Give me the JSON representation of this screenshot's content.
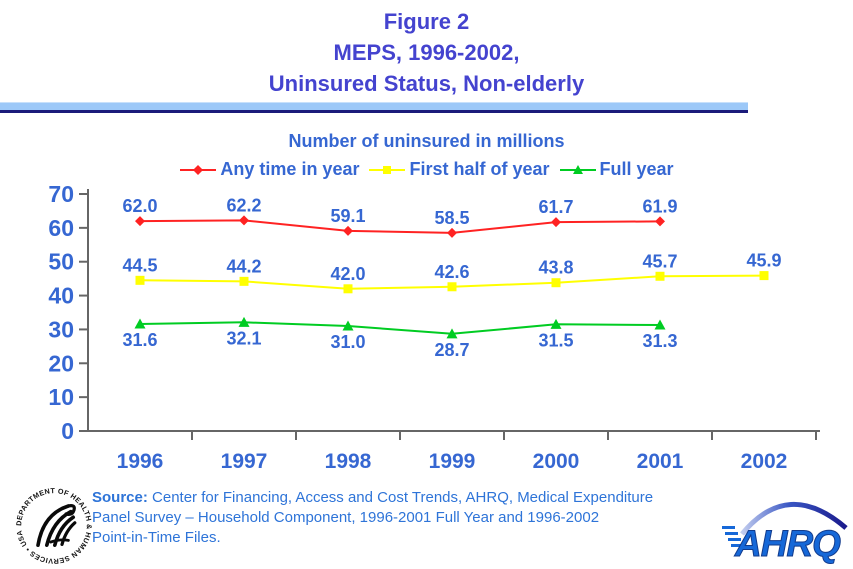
{
  "title": {
    "line1": "Figure 2",
    "line2": "MEPS, 1996-2002,",
    "line3": "Uninsured Status, Non-elderly"
  },
  "chart_data": {
    "type": "line",
    "subtitle": "Number of uninsured in millions",
    "categories": [
      "1996",
      "1997",
      "1998",
      "1999",
      "2000",
      "2001",
      "2002"
    ],
    "ylim": [
      0,
      70
    ],
    "yticks": [
      0,
      10,
      20,
      30,
      40,
      50,
      60,
      70
    ],
    "grid": false,
    "legend_position": "top",
    "series": [
      {
        "name": "Any time in year",
        "marker": "diamond",
        "color": "#ff2222",
        "label_position": "above",
        "values": [
          62.0,
          62.2,
          59.1,
          58.5,
          61.7,
          61.9,
          null
        ]
      },
      {
        "name": "First half of year",
        "marker": "square",
        "color": "#ffff00",
        "label_position": "above",
        "values": [
          44.5,
          44.2,
          42.0,
          42.6,
          43.8,
          45.7,
          45.9
        ]
      },
      {
        "name": "Full year",
        "marker": "triangle",
        "color": "#00cc22",
        "label_position": "below",
        "values": [
          31.6,
          32.1,
          31.0,
          28.7,
          31.5,
          31.3,
          null
        ]
      }
    ]
  },
  "source": {
    "label": "Source:",
    "line1": " Center for Financing, Access and Cost Trends, AHRQ, Medical Expenditure",
    "line2": "Panel Survey – Household Component, 1996-2001 Full Year and 1996-2002",
    "line3": "Point-in-Time Files."
  },
  "logos": {
    "hhs_ring_text": "DEPARTMENT OF HEALTH & HUMAN SERVICES • USA",
    "ahrq_text": "AHRQ"
  },
  "colors": {
    "title": "#4443cf",
    "chart_text": "#3667d2",
    "source_text": "#2e74d8",
    "divider_band": "#9cc8f8",
    "divider_line": "#1b1b7a",
    "axis": "#666666"
  }
}
